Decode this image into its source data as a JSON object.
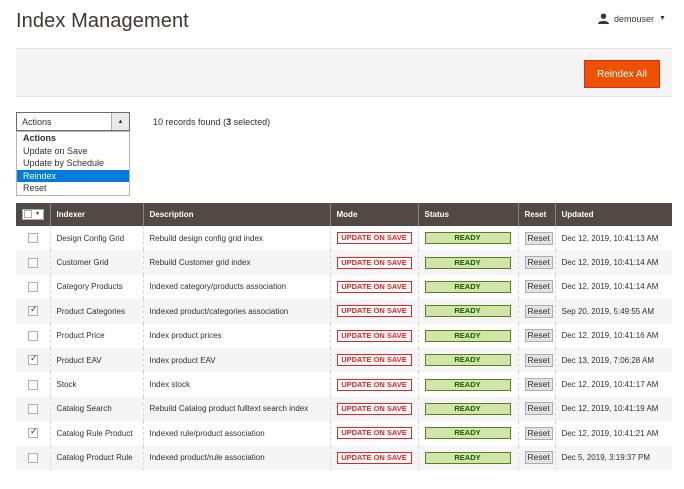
{
  "page": {
    "title": "Index Management"
  },
  "user": {
    "name": "demouser",
    "icon": "user-icon"
  },
  "toolbar": {
    "reindex_all_label": "Reindex All",
    "accent": "#eb5202"
  },
  "mass_actions": {
    "selected_label": "Actions",
    "options": [
      {
        "label": "Actions",
        "is_header": true,
        "selected": false
      },
      {
        "label": "Update on Save",
        "is_header": false,
        "selected": false
      },
      {
        "label": "Update by Schedule",
        "is_header": false,
        "selected": false
      },
      {
        "label": "Reindex",
        "is_header": false,
        "selected": true
      },
      {
        "label": "Reset",
        "is_header": false,
        "selected": false
      }
    ]
  },
  "records": {
    "count": "10",
    "text_prefix": "records found (",
    "selected": "3",
    "text_suffix": "selected)"
  },
  "grid": {
    "headers": [
      "Indexer",
      "Description",
      "Mode",
      "Status",
      "Reset",
      "Updated"
    ],
    "rows": [
      {
        "checked": false,
        "indexer": "Design Config Grid",
        "description": "Rebuild design config grid index",
        "mode": "UPDATE ON SAVE",
        "status": "READY",
        "reset": "Reset",
        "updated": "Dec 12, 2019, 10:41:13 AM"
      },
      {
        "checked": false,
        "indexer": "Customer Grid",
        "description": "Rebuild Customer grid index",
        "mode": "UPDATE ON SAVE",
        "status": "READY",
        "reset": "Reset",
        "updated": "Dec 12, 2019, 10:41:14 AM"
      },
      {
        "checked": false,
        "indexer": "Category Products",
        "description": "Indexed category/products association",
        "mode": "UPDATE ON SAVE",
        "status": "READY",
        "reset": "Reset",
        "updated": "Dec 12, 2019, 10:41:14 AM"
      },
      {
        "checked": true,
        "indexer": "Product Categories",
        "description": "Indexed product/categories association",
        "mode": "UPDATE ON SAVE",
        "status": "READY",
        "reset": "Reset",
        "updated": "Sep 20, 2019, 5:49:55 AM"
      },
      {
        "checked": false,
        "indexer": "Product Price",
        "description": "Index product prices",
        "mode": "UPDATE ON SAVE",
        "status": "READY",
        "reset": "Reset",
        "updated": "Dec 12, 2019, 10:41:16 AM"
      },
      {
        "checked": true,
        "indexer": "Product EAV",
        "description": "Index product EAV",
        "mode": "UPDATE ON SAVE",
        "status": "READY",
        "reset": "Reset",
        "updated": "Dec 13, 2019, 7:06:28 AM"
      },
      {
        "checked": false,
        "indexer": "Stock",
        "description": "Index stock",
        "mode": "UPDATE ON SAVE",
        "status": "READY",
        "reset": "Reset",
        "updated": "Dec 12, 2019, 10:41:17 AM"
      },
      {
        "checked": false,
        "indexer": "Catalog Search",
        "description": "Rebuild Catalog product fulltext search index",
        "mode": "UPDATE ON SAVE",
        "status": "READY",
        "reset": "Reset",
        "updated": "Dec 12, 2019, 10:41:19 AM"
      },
      {
        "checked": true,
        "indexer": "Catalog Rule Product",
        "description": "Indexed rule/product association",
        "mode": "UPDATE ON SAVE",
        "status": "READY",
        "reset": "Reset",
        "updated": "Dec 12, 2019, 10:41:21 AM"
      },
      {
        "checked": false,
        "indexer": "Catalog Product Rule",
        "description": "Indexed product/rule association",
        "mode": "UPDATE ON SAVE",
        "status": "READY",
        "reset": "Reset",
        "updated": "Dec 5, 2019, 3:19:37 PM"
      }
    ]
  }
}
